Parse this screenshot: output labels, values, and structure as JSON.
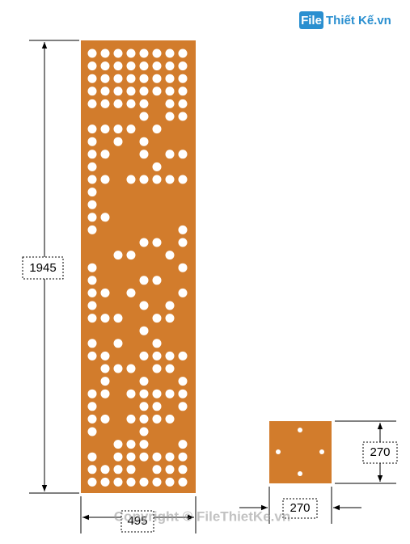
{
  "logo": {
    "box": "File",
    "text": "Thiết Kế.vn"
  },
  "panel": {
    "height_label": "1945",
    "width_label": "495"
  },
  "detail": {
    "width_label": "270",
    "height_label": "270"
  },
  "watermark": "Copyright © FileThietKe.vn"
}
